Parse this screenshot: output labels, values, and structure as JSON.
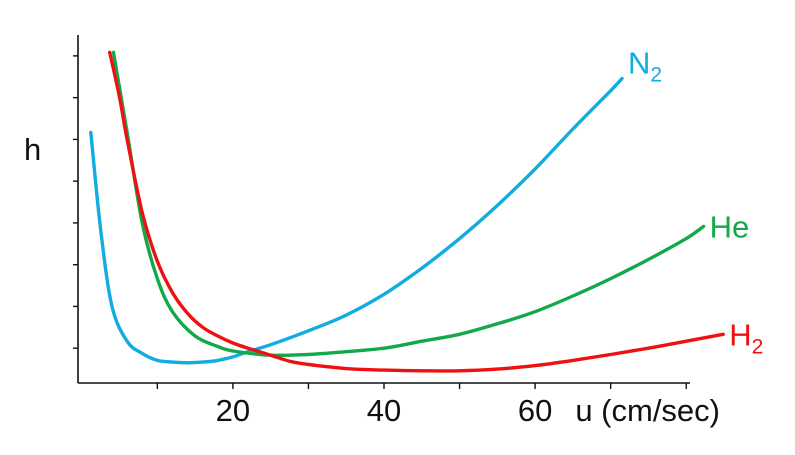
{
  "chart_data": {
    "type": "line",
    "xlabel": "u (cm/sec)",
    "ylabel": "h",
    "xlim": [
      -0.5,
      80.5
    ],
    "ylim": [
      0,
      10
    ],
    "x_ticks": [
      20,
      40,
      60
    ],
    "x_tick_labels": [
      "20",
      "40",
      "60"
    ],
    "y_tick_labels_shown": false,
    "grid": false,
    "legend": "labels at line ends",
    "series": [
      {
        "name": "N",
        "subscript": "2",
        "color": "#11ace0",
        "x": [
          1.2,
          2.5,
          4,
          6,
          8,
          10,
          12,
          14,
          16,
          18,
          20,
          22,
          25,
          30,
          35,
          40,
          45,
          50,
          55,
          60,
          65,
          70,
          71.5
        ],
        "y": [
          7.2,
          4.4,
          2.2,
          1.2,
          0.85,
          0.65,
          0.6,
          0.58,
          0.6,
          0.65,
          0.75,
          0.9,
          1.1,
          1.5,
          1.95,
          2.55,
          3.3,
          4.15,
          5.1,
          6.15,
          7.3,
          8.4,
          8.75
        ]
      },
      {
        "name": "He",
        "color": "#13a84a",
        "x": [
          4.2,
          6,
          8,
          10,
          12,
          15,
          18,
          20,
          25,
          30,
          35,
          40,
          45,
          50,
          55,
          60,
          65,
          70,
          75,
          80,
          82.3
        ],
        "y": [
          9.5,
          7.2,
          4.6,
          3.0,
          2.05,
          1.35,
          1.05,
          0.92,
          0.8,
          0.82,
          0.9,
          1.0,
          1.2,
          1.4,
          1.7,
          2.05,
          2.5,
          3.0,
          3.55,
          4.15,
          4.5
        ]
      },
      {
        "name": "H",
        "subscript": "2",
        "color": "#ee1111",
        "x": [
          3.7,
          5,
          6,
          8,
          10,
          12,
          14,
          16,
          18,
          20,
          22,
          25,
          28,
          32,
          36,
          40,
          45,
          50,
          55,
          60,
          65,
          70,
          75,
          80,
          84.9
        ],
        "y": [
          9.5,
          8.2,
          7.0,
          4.9,
          3.5,
          2.6,
          2.0,
          1.6,
          1.35,
          1.15,
          1.0,
          0.8,
          0.6,
          0.48,
          0.4,
          0.37,
          0.35,
          0.35,
          0.4,
          0.5,
          0.65,
          0.82,
          1.0,
          1.2,
          1.4
        ]
      }
    ]
  }
}
